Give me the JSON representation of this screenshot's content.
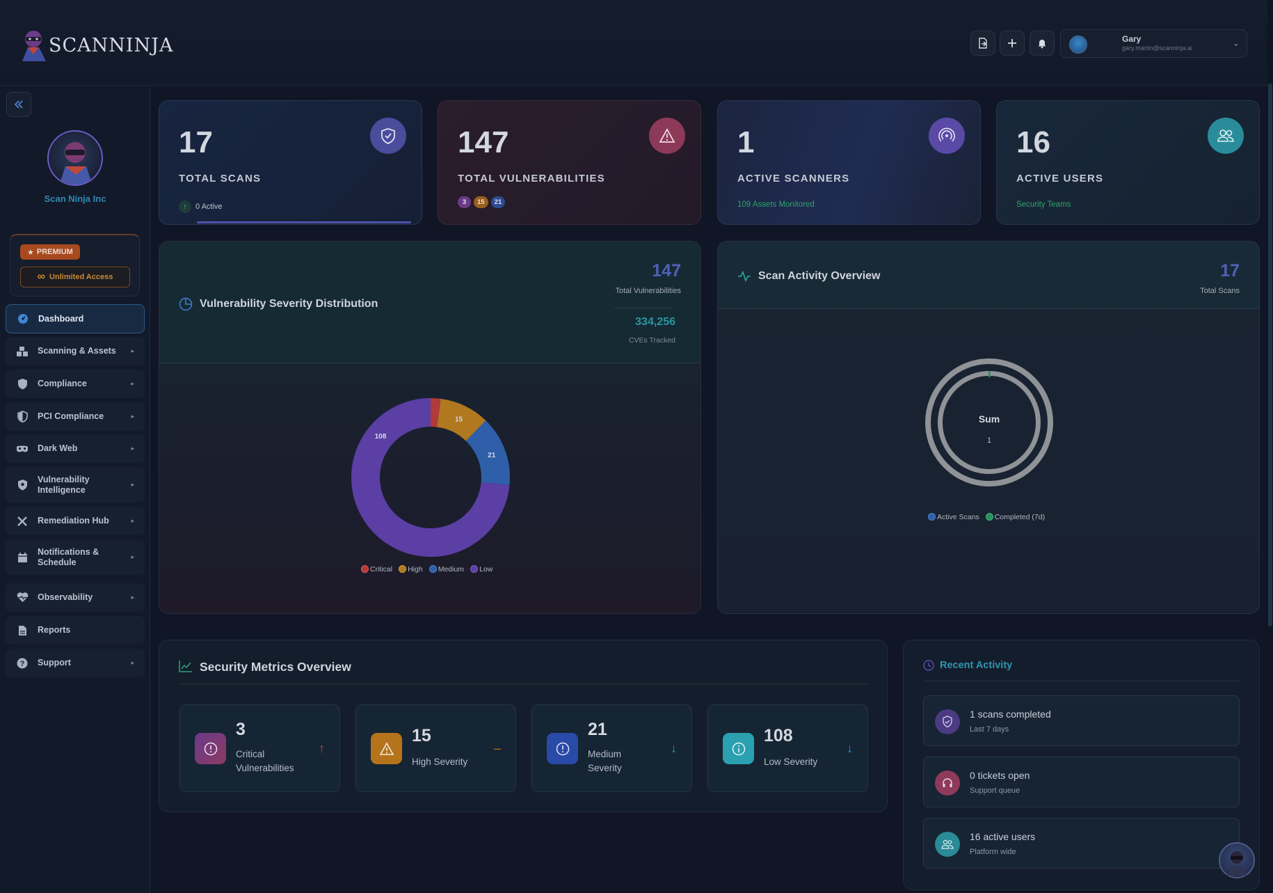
{
  "brand": {
    "name": "SCANNINJA"
  },
  "header": {
    "user_name": "Gary",
    "user_email": "gary.martin@scanninja.ai"
  },
  "sidebar": {
    "org_name": "Scan Ninja Inc",
    "premium_label": "PREMIUM",
    "unlimited_label": "Unlimited Access",
    "items": [
      {
        "label": "Dashboard",
        "icon": "dashboard-icon",
        "active": true
      },
      {
        "label": "Scanning & Assets",
        "icon": "assets-icon"
      },
      {
        "label": "Compliance",
        "icon": "shield-icon"
      },
      {
        "label": "PCI Compliance",
        "icon": "shield-half-icon"
      },
      {
        "label": "Dark Web",
        "icon": "mask-icon"
      },
      {
        "label": "Vulnerability Intelligence",
        "icon": "shield-alert-icon"
      },
      {
        "label": "Remediation Hub",
        "icon": "tools-icon"
      },
      {
        "label": "Notifications & Schedule",
        "icon": "calendar-icon"
      },
      {
        "label": "Observability",
        "icon": "heartbeat-icon"
      },
      {
        "label": "Reports",
        "icon": "report-icon"
      },
      {
        "label": "Support",
        "icon": "help-icon"
      }
    ]
  },
  "stats": {
    "total_scans": {
      "value": "17",
      "label": "TOTAL SCANS",
      "sub": "0 Active"
    },
    "total_vulns": {
      "value": "147",
      "label": "TOTAL VULNERABILITIES",
      "badges": [
        "3",
        "15",
        "21"
      ]
    },
    "active_scanners": {
      "value": "1",
      "label": "ACTIVE SCANNERS",
      "sub": "109 Assets Monitored"
    },
    "active_users": {
      "value": "16",
      "label": "ACTIVE USERS",
      "sub": "Security Teams"
    }
  },
  "severity_panel": {
    "title": "Vulnerability Severity Distribution",
    "total_value": "147",
    "total_label": "Total Vulnerabilities",
    "cves_value": "334,256",
    "cves_label": "CVEs Tracked",
    "legend": [
      "Critical",
      "High",
      "Medium",
      "Low"
    ]
  },
  "activity_panel": {
    "title": "Scan Activity Overview",
    "total_value": "17",
    "total_label": "Total Scans",
    "center_label": "Sum",
    "center_value": "1",
    "legend": [
      "Active Scans",
      "Completed (7d)"
    ]
  },
  "metrics_panel": {
    "title": "Security Metrics Overview",
    "cards": [
      {
        "value": "3",
        "label": "Critical Vulnerabilities",
        "trend": "↑"
      },
      {
        "value": "15",
        "label": "High Severity",
        "trend": "–"
      },
      {
        "value": "21",
        "label": "Medium Severity",
        "trend": "↓"
      },
      {
        "value": "108",
        "label": "Low Severity",
        "trend": "↓"
      }
    ]
  },
  "recent_activity": {
    "title": "Recent Activity",
    "items": [
      {
        "title": "1 scans completed",
        "sub": "Last 7 days"
      },
      {
        "title": "0 tickets open",
        "sub": "Support queue"
      },
      {
        "title": "16 active users",
        "sub": "Platform wide"
      }
    ]
  },
  "chart_data": [
    {
      "type": "pie",
      "categories": [
        "Critical",
        "High",
        "Medium",
        "Low"
      ],
      "values": [
        3,
        15,
        21,
        108
      ],
      "colors": [
        "#b23a3a",
        "#b0781f",
        "#2f5fa8",
        "#5b3fa4"
      ],
      "donut": true,
      "legend": "bottom"
    },
    {
      "type": "pie",
      "categories": [
        "Active Scans",
        "Completed (7d)"
      ],
      "values": [
        0,
        1
      ],
      "colors": [
        "#2f5fa8",
        "#2a8f5e"
      ],
      "donut": true,
      "legend": "bottom"
    }
  ]
}
